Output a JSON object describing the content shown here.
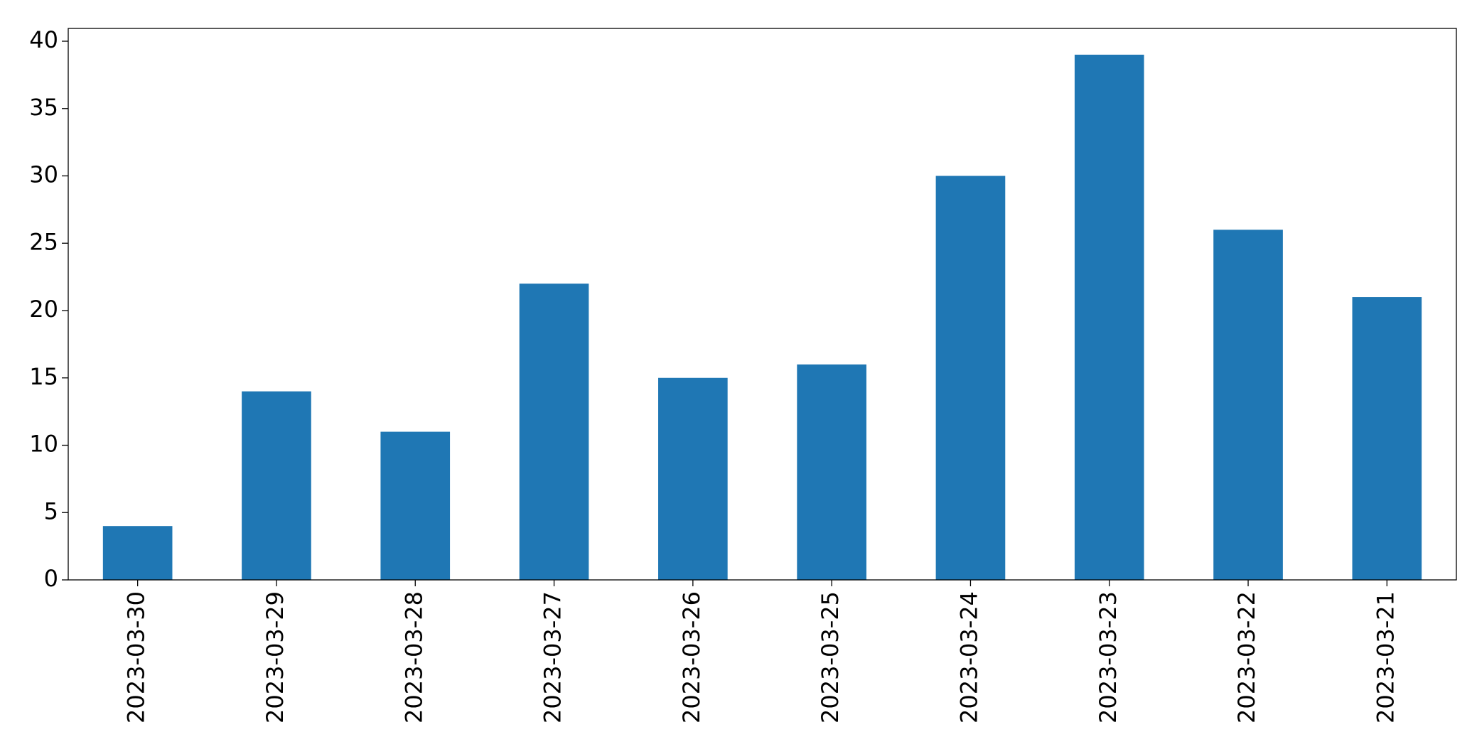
{
  "chart_data": {
    "type": "bar",
    "categories": [
      "2023-03-30",
      "2023-03-29",
      "2023-03-28",
      "2023-03-27",
      "2023-03-26",
      "2023-03-25",
      "2023-03-24",
      "2023-03-23",
      "2023-03-22",
      "2023-03-21"
    ],
    "values": [
      4,
      14,
      11,
      22,
      15,
      16,
      30,
      39,
      26,
      21
    ],
    "color": "#1f77b4",
    "ylim": [
      0,
      40.95
    ],
    "yticks": [
      0,
      5,
      10,
      15,
      20,
      25,
      30,
      35,
      40
    ],
    "grid": false
  }
}
